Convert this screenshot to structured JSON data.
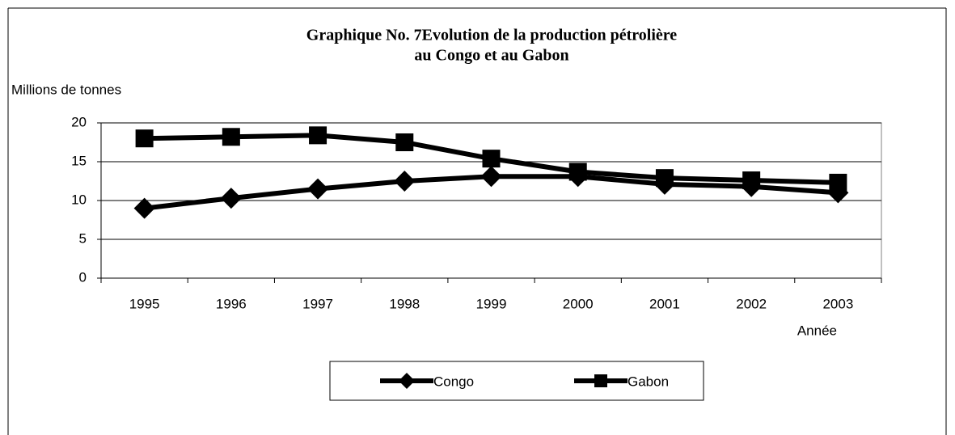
{
  "chart_data": {
    "type": "line",
    "title": [
      "Graphique No. 7Evolution de la production pétrolière",
      "au Congo et au Gabon"
    ],
    "y_label": "Millions de tonnes",
    "x_label": "Année",
    "categories": [
      "1995",
      "1996",
      "1997",
      "1998",
      "1999",
      "2000",
      "2001",
      "2002",
      "2003"
    ],
    "series": [
      {
        "name": "Congo",
        "color": "#000000",
        "marker": "diamond",
        "values": [
          9.0,
          10.3,
          11.5,
          12.5,
          13.1,
          13.1,
          12.1,
          11.8,
          11.0
        ]
      },
      {
        "name": "Gabon",
        "color": "#000000",
        "marker": "square",
        "values": [
          18.0,
          18.2,
          18.4,
          17.5,
          15.4,
          13.7,
          12.9,
          12.6,
          12.3
        ]
      }
    ],
    "ylim": [
      0,
      20
    ],
    "yticks": [
      0,
      5,
      10,
      15,
      20
    ],
    "grid": true,
    "legend": "bottom"
  }
}
